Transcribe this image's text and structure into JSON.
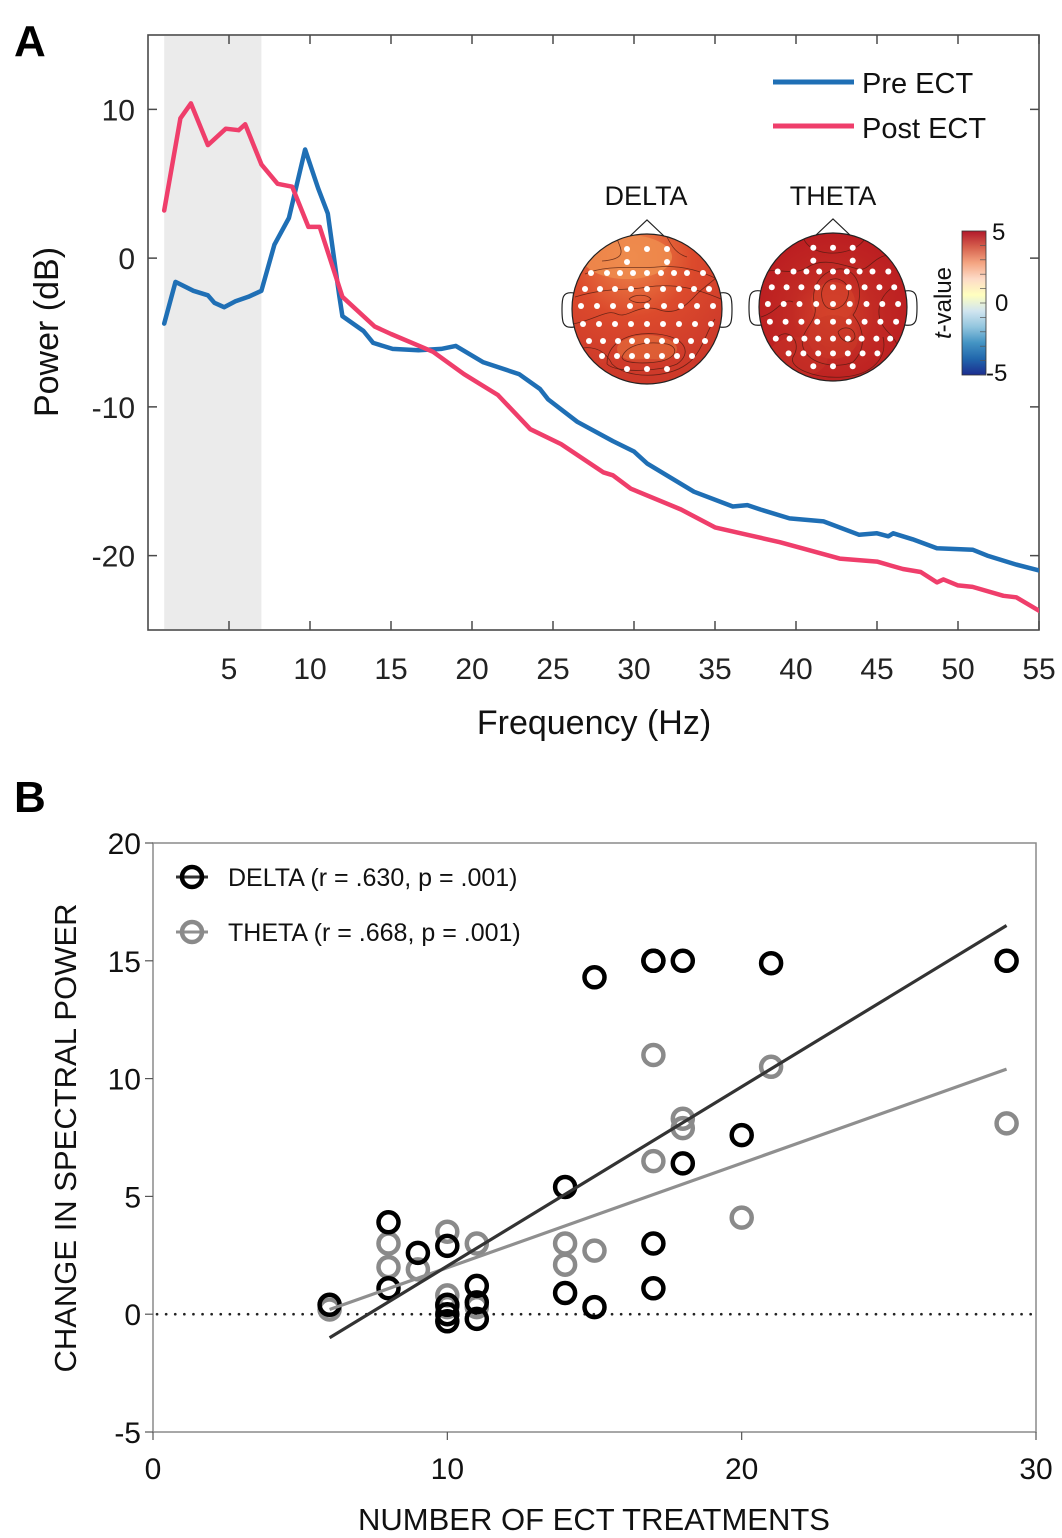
{
  "chart_data": [
    {
      "panel": "A",
      "type": "line",
      "xlabel": "Frequency (Hz)",
      "ylabel": "Power (dB)",
      "xlim": [
        0,
        55
      ],
      "ylim": [
        -25,
        15
      ],
      "xticks": [
        5,
        10,
        15,
        20,
        25,
        30,
        35,
        40,
        45,
        50,
        55
      ],
      "yticks": [
        -20,
        -10,
        0,
        10
      ],
      "shaded_band_hz": [
        1,
        7
      ],
      "legend_position": "top-right",
      "series": [
        {
          "name": "Pre ECT",
          "color": "#1f6fb5",
          "x": [
            1.0,
            1.7,
            2.8,
            3.7,
            4.1,
            4.7,
            5.4,
            6.2,
            7.0,
            7.8,
            8.7,
            9.7,
            10.5,
            11.1,
            11.8,
            12.0,
            13.3,
            13.9,
            15.1,
            16.7,
            18.1,
            19.0,
            20.7,
            22.9,
            24.2,
            24.7,
            26.5,
            28.7,
            30.0,
            30.8,
            33.7,
            36.1,
            37.0,
            37.8,
            39.6,
            41.7,
            43.9,
            45.0,
            45.7,
            46.0,
            47.2,
            48.7,
            50.9,
            51.8,
            53.6,
            55.0
          ],
          "y": [
            -4.4,
            -1.6,
            -2.2,
            -2.5,
            -3.0,
            -3.3,
            -2.9,
            -2.6,
            -2.2,
            0.9,
            2.7,
            7.3,
            4.7,
            3.0,
            -2.5,
            -3.9,
            -4.9,
            -5.7,
            -6.1,
            -6.2,
            -6.1,
            -5.9,
            -7.0,
            -7.8,
            -8.8,
            -9.5,
            -11.0,
            -12.3,
            -13.0,
            -13.8,
            -15.7,
            -16.7,
            -16.6,
            -16.9,
            -17.5,
            -17.7,
            -18.6,
            -18.5,
            -18.7,
            -18.5,
            -18.9,
            -19.5,
            -19.6,
            -20.0,
            -20.6,
            -21.0
          ]
        },
        {
          "name": "Post ECT",
          "color": "#ef3e6b",
          "x": [
            1.0,
            2.0,
            2.65,
            3.7,
            4.8,
            5.6,
            6.0,
            7.0,
            8.0,
            8.9,
            9.9,
            10.6,
            12.0,
            14.0,
            15.0,
            17.6,
            19.5,
            21.6,
            23.6,
            25.5,
            28.1,
            28.7,
            29.8,
            32.9,
            35.0,
            37.0,
            39.0,
            40.7,
            42.7,
            45.0,
            46.6,
            47.7,
            48.7,
            49.1,
            50.0,
            50.9,
            52.8,
            53.6,
            55.0
          ],
          "y": [
            3.2,
            9.4,
            10.4,
            7.6,
            8.7,
            8.6,
            9.0,
            6.3,
            5.0,
            4.8,
            2.1,
            2.1,
            -2.6,
            -4.6,
            -5.1,
            -6.3,
            -7.8,
            -9.2,
            -11.5,
            -12.5,
            -14.4,
            -14.6,
            -15.5,
            -16.9,
            -18.1,
            -18.6,
            -19.1,
            -19.6,
            -20.2,
            -20.4,
            -20.9,
            -21.1,
            -21.8,
            -21.6,
            -22.0,
            -22.1,
            -22.7,
            -22.8,
            -23.7
          ]
        }
      ],
      "inset": {
        "topomaps": [
          {
            "title": "DELTA",
            "base_color": "#dc4a2c",
            "highlight_color": "#ee8a4c"
          },
          {
            "title": "THETA",
            "base_color": "#b8171f",
            "highlight_color": "#d6442c"
          }
        ],
        "colorbar": {
          "label_prefix": "t",
          "label_suffix": "-value",
          "range": [
            -5,
            5
          ],
          "ticks": [
            "5",
            "0",
            "-5"
          ],
          "colormap": [
            "#b2182b",
            "#d6604d",
            "#f4a582",
            "#fddbc7",
            "#ffffbf",
            "#d1e5f0",
            "#92c5de",
            "#4393c3",
            "#2166ac",
            "#1c2d8f"
          ]
        }
      }
    },
    {
      "panel": "B",
      "type": "scatter",
      "xlabel": "NUMBER OF ECT TREATMENTS",
      "ylabel": "CHANGE IN SPECTRAL POWER",
      "xlim": [
        0,
        30
      ],
      "ylim": [
        -5,
        20
      ],
      "xticks": [
        0,
        10,
        20,
        30
      ],
      "yticks": [
        -5,
        0,
        5,
        10,
        15,
        20
      ],
      "reference_line_y": 0,
      "legend_position": "top-left",
      "series": [
        {
          "name": "DELTA",
          "legend_label": "DELTA (r = .630, p = .001)",
          "color": "#000000",
          "line_color": "#333333",
          "x": [
            6,
            8,
            8,
            9,
            10,
            10,
            10,
            10,
            11,
            11,
            11,
            14,
            14,
            15,
            15,
            17,
            17,
            17,
            17,
            18,
            18,
            20,
            21,
            29
          ],
          "y": [
            0.4,
            3.9,
            1.1,
            2.6,
            2.9,
            0.4,
            0.0,
            -0.3,
            1.2,
            0.5,
            -0.2,
            5.4,
            0.9,
            14.3,
            0.3,
            15.0,
            3.0,
            1.1,
            15.0,
            15.0,
            6.4,
            7.6,
            14.9,
            15.0
          ],
          "fit_line": {
            "x": [
              6,
              29
            ],
            "y": [
              -1.0,
              16.5
            ]
          }
        },
        {
          "name": "THETA",
          "legend_label": "THETA (r = .668, p = .001)",
          "color": "#8a8a8a",
          "line_color": "#8f8f8f",
          "x": [
            6,
            8,
            8,
            9,
            10,
            10,
            10,
            11,
            11,
            14,
            14,
            15,
            17,
            17,
            18,
            18,
            20,
            21,
            29
          ],
          "y": [
            0.2,
            3.0,
            2.0,
            1.9,
            3.5,
            0.8,
            0.3,
            3.0,
            0.3,
            3.0,
            2.1,
            2.7,
            11.0,
            6.5,
            8.3,
            7.9,
            4.1,
            10.5,
            8.1
          ],
          "fit_line": {
            "x": [
              6,
              29
            ],
            "y": [
              0.2,
              10.4
            ]
          }
        }
      ]
    }
  ],
  "labels": {
    "panel_a": "A",
    "panel_b": "B"
  }
}
